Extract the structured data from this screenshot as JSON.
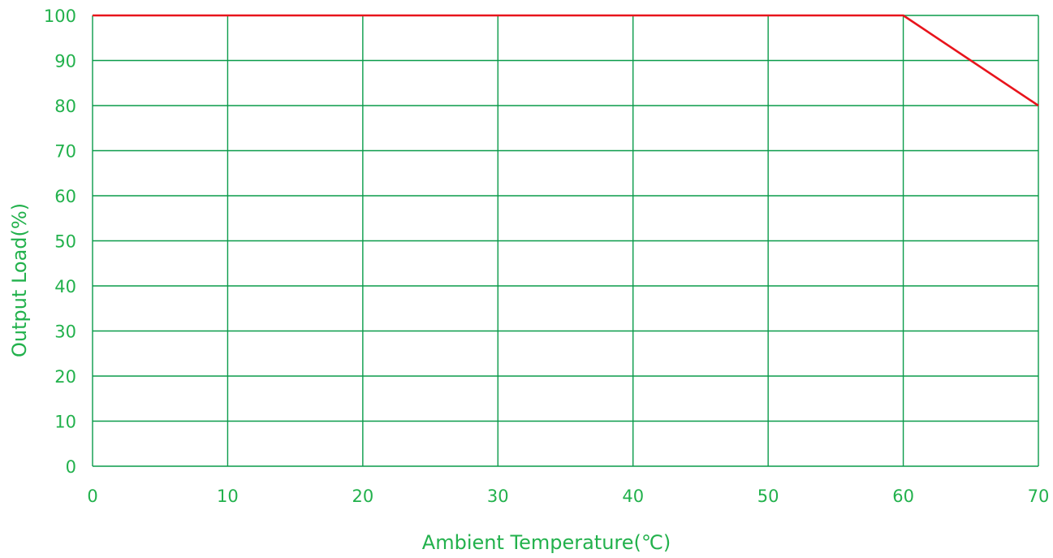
{
  "chart_data": {
    "type": "line",
    "title": "",
    "xlabel": "Ambient Temperature(℃)",
    "ylabel": "Output Load(%)",
    "xlim": [
      0,
      70
    ],
    "ylim": [
      0,
      100
    ],
    "x_ticks": [
      0,
      10,
      20,
      30,
      40,
      50,
      60,
      70
    ],
    "y_ticks": [
      0,
      10,
      20,
      30,
      40,
      50,
      60,
      70,
      80,
      90,
      100
    ],
    "grid": true,
    "series": [
      {
        "x": [
          0,
          60,
          70
        ],
        "y": [
          100,
          100,
          80
        ]
      }
    ]
  },
  "colors": {
    "grid": "#0a9b4a",
    "text": "#22b14c",
    "series": "#e8141c"
  }
}
